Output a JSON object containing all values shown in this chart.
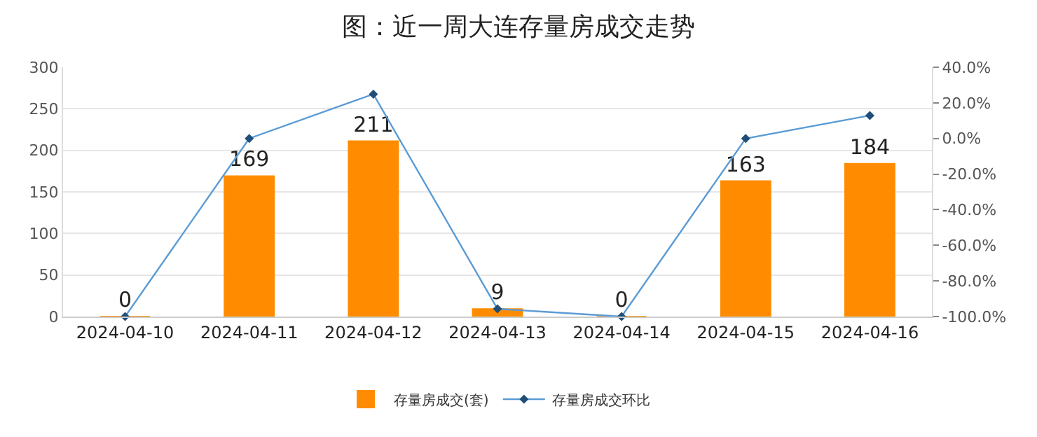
{
  "chart_data": {
    "type": "bar",
    "title": "图：近一周大连存量房成交走势",
    "categories": [
      "2024-04-10",
      "2024-04-11",
      "2024-04-12",
      "2024-04-13",
      "2024-04-14",
      "2024-04-15",
      "2024-04-16"
    ],
    "series": [
      {
        "name": "存量房成交(套)",
        "color": "#ff8c00",
        "values": [
          0,
          169,
          211,
          9,
          0,
          163,
          184
        ],
        "data_labels": true
      },
      {
        "name": "存量房成交环比",
        "type": "line",
        "axis": "y2",
        "color": "#5b9bd5",
        "marker": "diamond",
        "values": [
          -100,
          0,
          24.9,
          -95.7,
          -100,
          0,
          12.9
        ]
      }
    ],
    "ylim": [
      0,
      300
    ],
    "yticks": [
      0,
      50,
      100,
      150,
      200,
      250,
      300
    ],
    "y2lim": [
      -100,
      40
    ],
    "y2ticks": [
      {
        "value": -100,
        "label": "-100.0%"
      },
      {
        "value": -80,
        "label": "-80.0%"
      },
      {
        "value": -60,
        "label": "-60.0%"
      },
      {
        "value": -40,
        "label": "-40.0%"
      },
      {
        "value": -20,
        "label": "-20.0%"
      },
      {
        "value": 0,
        "label": "0.0%"
      },
      {
        "value": 20,
        "label": "20.0%"
      },
      {
        "value": 40,
        "label": "40.0%"
      }
    ],
    "grid": "y",
    "legend": "bottom"
  }
}
